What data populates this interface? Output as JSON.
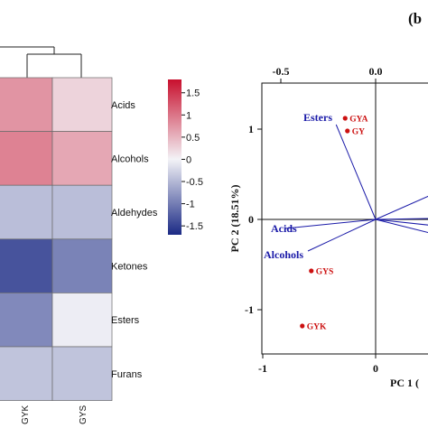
{
  "panel_label": "(b",
  "chart_data": [
    {
      "type": "heatmap",
      "columns": [
        "GYK",
        "GYS"
      ],
      "rows": [
        "Acids",
        "Alcohols",
        "Aldehydes",
        "Ketones",
        "Esters",
        "Furans"
      ],
      "values": [
        [
          0.75,
          0.25
        ],
        [
          0.9,
          0.6
        ],
        [
          -0.45,
          -0.45
        ],
        [
          -1.35,
          -0.95
        ],
        [
          -0.9,
          -0.05
        ],
        [
          -0.4,
          -0.4
        ]
      ],
      "colorbar": {
        "range": [
          -1.7,
          1.8
        ],
        "ticks": [
          "1.5",
          "1",
          "0.5",
          "0",
          "-0.5",
          "-1",
          "-1.5"
        ],
        "colors": {
          "low": "#1b2a85",
          "mid": "#f3f3f7",
          "high": "#c8102e"
        }
      }
    },
    {
      "type": "scatter",
      "xlabel": "PC 1 (",
      "ylabel": "PC 2 (18.51%)",
      "x_ticks": [
        "-1",
        "0"
      ],
      "y_ticks": [
        "1",
        "0",
        "-1"
      ],
      "top_ticks": [
        "-0.5",
        "0.0"
      ],
      "xlim": [
        -1,
        1
      ],
      "ylim": [
        -1.5,
        1.5
      ],
      "loadings": [
        {
          "name": "Esters",
          "x": -0.35,
          "y": 1.05
        },
        {
          "name": "Acids",
          "x": -0.8,
          "y": -0.1
        },
        {
          "name": "Alcohols",
          "x": -0.6,
          "y": -0.35
        }
      ],
      "samples": [
        {
          "name": "GYA",
          "x": -0.27,
          "y": 1.12
        },
        {
          "name": "GY",
          "x": -0.25,
          "y": 0.98
        },
        {
          "name": "GYS",
          "x": -0.57,
          "y": -0.57
        },
        {
          "name": "GYK",
          "x": -0.65,
          "y": -1.18
        }
      ],
      "colors": {
        "loading": "#1a1aa8",
        "sample": "#cc1111"
      }
    }
  ]
}
